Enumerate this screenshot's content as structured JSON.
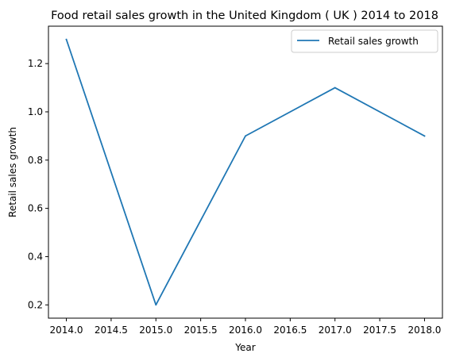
{
  "chart_data": {
    "type": "line",
    "title": "Food retail sales growth in the United Kingdom ( UK ) 2014 to 2018",
    "xlabel": "Year",
    "ylabel": "Retail sales growth",
    "x": [
      2014,
      2015,
      2016,
      2017,
      2018
    ],
    "series": [
      {
        "name": "Retail sales growth",
        "values": [
          1.3,
          0.2,
          0.9,
          1.1,
          0.9
        ],
        "color": "#1f77b4"
      }
    ],
    "xlim": [
      2013.8,
      2018.2
    ],
    "ylim": [
      0.145,
      1.355
    ],
    "xticks": [
      "2014.0",
      "2014.5",
      "2015.0",
      "2015.5",
      "2016.0",
      "2016.5",
      "2017.0",
      "2017.5",
      "2018.0"
    ],
    "yticks": [
      "0.2",
      "0.4",
      "0.6",
      "0.8",
      "1.0",
      "1.2"
    ],
    "grid": false,
    "legend_position": "top-right"
  }
}
